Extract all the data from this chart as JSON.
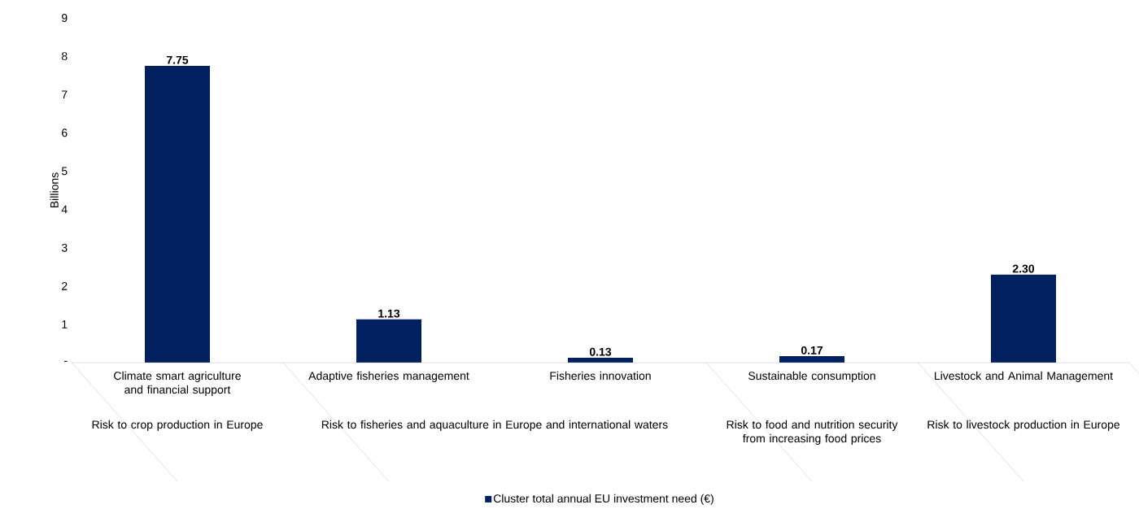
{
  "chart_data": {
    "type": "bar",
    "ylabel": "Billions",
    "categories": [
      "Climate smart agriculture and financial support",
      "Adaptive fisheries management",
      "Fisheries innovation",
      "Sustainable consumption",
      "Livestock and Animal Management"
    ],
    "series": [
      {
        "name": "Cluster total annual EU investment need (€)",
        "color": "#002060",
        "values": [
          7.75,
          1.13,
          0.13,
          0.17,
          2.3
        ],
        "value_labels": [
          "7.75",
          "1.13",
          "0.13",
          "0.17",
          "2.30"
        ]
      }
    ],
    "annotations": [
      "Risk to crop production in Europe",
      "Risk to fisheries and aquaculture in Europe and international waters",
      "Risk to food and nutrition security from increasing food prices",
      "Risk to livestock production in Europe"
    ],
    "ylim": [
      0,
      9
    ],
    "yticks": [
      {
        "value": 0,
        "label": "-"
      },
      1,
      2,
      3,
      4,
      5,
      6,
      7,
      8,
      9
    ],
    "grid": false,
    "legend": "bottom"
  }
}
